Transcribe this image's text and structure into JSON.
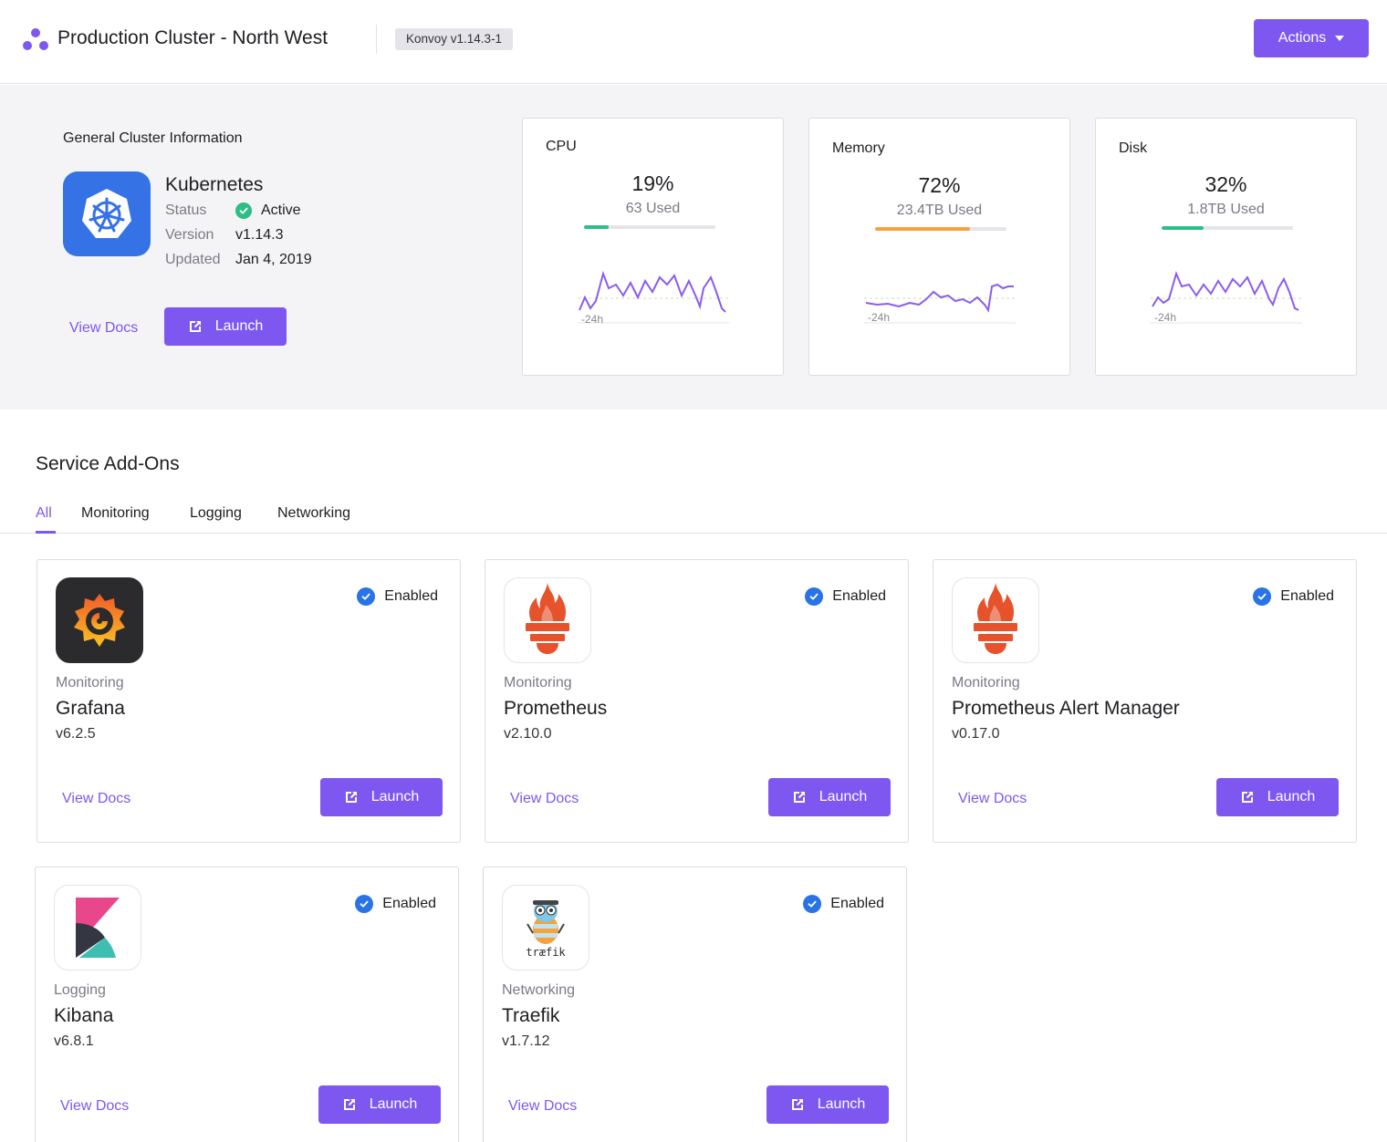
{
  "header": {
    "title": "Production Cluster - North West",
    "version_badge": "Konvoy v1.14.3-1",
    "actions_label": "Actions",
    "logo_icon": "cluster-logo-icon",
    "accent": "#7d57ef"
  },
  "cluster": {
    "section_title": "General Cluster Information",
    "name": "Kubernetes",
    "icon": "kubernetes-icon",
    "status_label": "Status",
    "status_value": "Active",
    "version_label": "Version",
    "version_value": "v1.14.3",
    "updated_label": "Updated",
    "updated_value": "Jan 4, 2019",
    "view_docs": "View Docs",
    "launch": "Launch"
  },
  "metrics": [
    {
      "label": "CPU",
      "percent": "19%",
      "used": "63 Used",
      "fill": 0.19,
      "bar_color": "#2dbd86",
      "range_label": "-24h"
    },
    {
      "label": "Memory",
      "percent": "72%",
      "used": "23.4TB Used",
      "fill": 0.72,
      "bar_color": "#f5a23c",
      "range_label": "-24h"
    },
    {
      "label": "Disk",
      "percent": "32%",
      "used": "1.8TB Used",
      "fill": 0.32,
      "bar_color": "#2dbd86",
      "range_label": "-24h"
    }
  ],
  "addons": {
    "title": "Service Add-Ons",
    "tabs": [
      "All",
      "Monitoring",
      "Logging",
      "Networking"
    ],
    "active_tab": "All",
    "enabled_label": "Enabled",
    "view_docs": "View Docs",
    "launch": "Launch",
    "items": [
      {
        "category": "Monitoring",
        "name": "Grafana",
        "version": "v6.2.5",
        "icon": "grafana-icon"
      },
      {
        "category": "Monitoring",
        "name": "Prometheus",
        "version": "v2.10.0",
        "icon": "prometheus-icon"
      },
      {
        "category": "Monitoring",
        "name": "Prometheus Alert Manager",
        "version": "v0.17.0",
        "icon": "prometheus-icon"
      },
      {
        "category": "Logging",
        "name": "Kibana",
        "version": "v6.8.1",
        "icon": "kibana-icon"
      },
      {
        "category": "Networking",
        "name": "Traefik",
        "version": "v1.7.12",
        "icon": "traefik-icon",
        "logo_text": "træfik"
      }
    ]
  }
}
